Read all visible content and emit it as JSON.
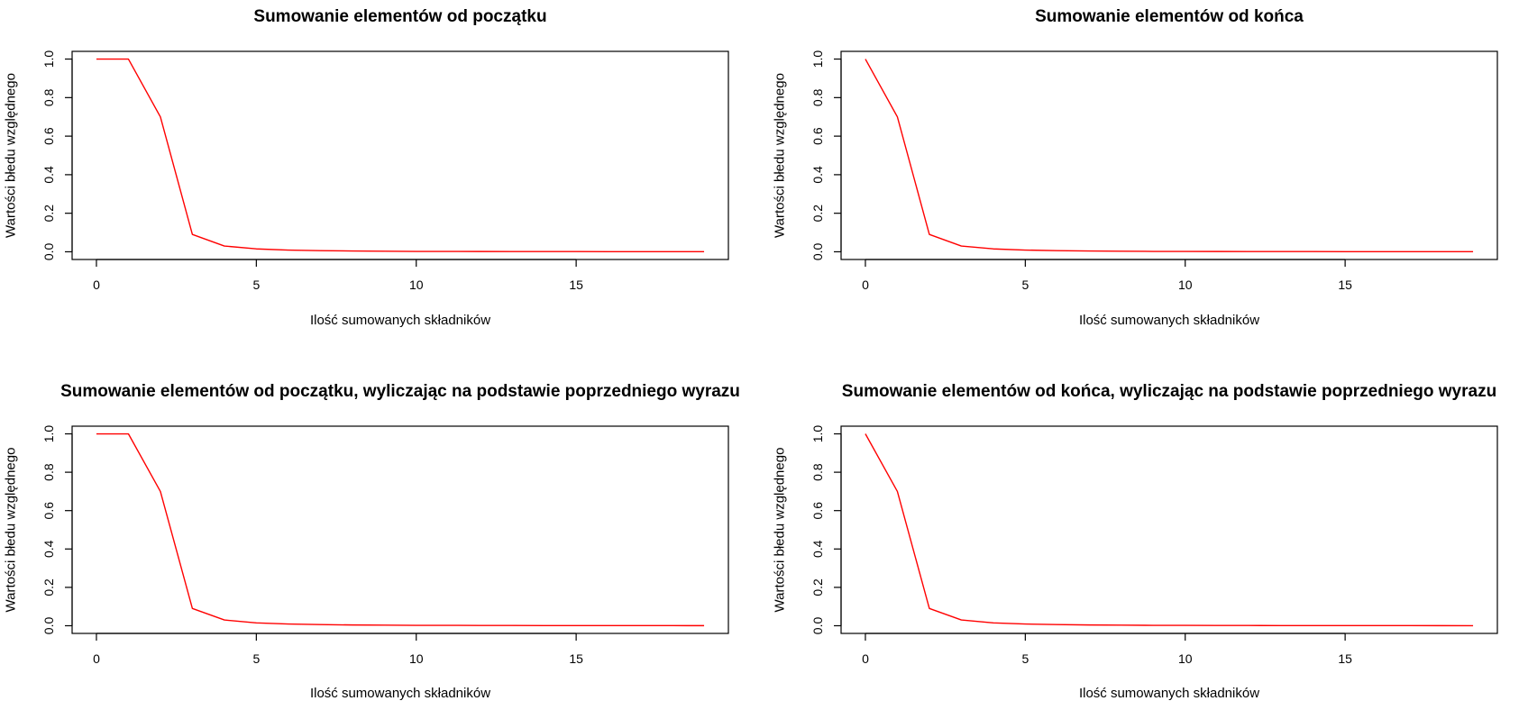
{
  "chart_data": [
    {
      "type": "line",
      "title": "Sumowanie elementów od początku",
      "xlabel": "Ilość sumowanych składników",
      "ylabel": "Wartości błedu względnego",
      "x": [
        0,
        1,
        2,
        3,
        4,
        5,
        6,
        7,
        8,
        9,
        10,
        11,
        12,
        13,
        14,
        15,
        16,
        17,
        18,
        19
      ],
      "series": [
        {
          "color": "#ff0000",
          "values": [
            1.0,
            1.0,
            0.7,
            0.09,
            0.03,
            0.015,
            0.009,
            0.006,
            0.004,
            0.003,
            0.002,
            0.002,
            0.0015,
            0.0012,
            0.001,
            0.001,
            0.0008,
            0.0007,
            0.0006,
            0.0005
          ]
        }
      ],
      "xlim": [
        -0.76,
        19.76
      ],
      "ylim": [
        -0.04,
        1.04
      ],
      "xticks": [
        0,
        5,
        10,
        15
      ],
      "yticks": [
        0.0,
        0.2,
        0.4,
        0.6,
        0.8,
        1.0
      ],
      "grid": false,
      "legend": "none"
    },
    {
      "type": "line",
      "title": "Sumowanie elementów od końca",
      "xlabel": "Ilość sumowanych składników",
      "ylabel": "Wartości błedu względnego",
      "x": [
        0,
        1,
        2,
        3,
        4,
        5,
        6,
        7,
        8,
        9,
        10,
        11,
        12,
        13,
        14,
        15,
        16,
        17,
        18,
        19
      ],
      "series": [
        {
          "color": "#ff0000",
          "values": [
            1.0,
            0.7,
            0.09,
            0.03,
            0.015,
            0.009,
            0.006,
            0.004,
            0.003,
            0.002,
            0.002,
            0.0015,
            0.0012,
            0.001,
            0.001,
            0.0008,
            0.0007,
            0.0006,
            0.0005,
            0.0004
          ]
        }
      ],
      "xlim": [
        -0.76,
        19.76
      ],
      "ylim": [
        -0.04,
        1.04
      ],
      "xticks": [
        0,
        5,
        10,
        15
      ],
      "yticks": [
        0.0,
        0.2,
        0.4,
        0.6,
        0.8,
        1.0
      ],
      "grid": false,
      "legend": "none"
    },
    {
      "type": "line",
      "title": "Sumowanie elementów od początku, wyliczając na podstawie poprzedniego wyrazu",
      "xlabel": "Ilość sumowanych składników",
      "ylabel": "Wartości błedu względnego",
      "x": [
        0,
        1,
        2,
        3,
        4,
        5,
        6,
        7,
        8,
        9,
        10,
        11,
        12,
        13,
        14,
        15,
        16,
        17,
        18,
        19
      ],
      "series": [
        {
          "color": "#ff0000",
          "values": [
            1.0,
            1.0,
            0.7,
            0.09,
            0.03,
            0.015,
            0.009,
            0.006,
            0.004,
            0.003,
            0.002,
            0.002,
            0.0015,
            0.0012,
            0.001,
            0.001,
            0.0008,
            0.0007,
            0.0006,
            0.0005
          ]
        }
      ],
      "xlim": [
        -0.76,
        19.76
      ],
      "ylim": [
        -0.04,
        1.04
      ],
      "xticks": [
        0,
        5,
        10,
        15
      ],
      "yticks": [
        0.0,
        0.2,
        0.4,
        0.6,
        0.8,
        1.0
      ],
      "grid": false,
      "legend": "none"
    },
    {
      "type": "line",
      "title": "Sumowanie elementów od końca, wyliczając na podstawie poprzedniego wyrazu",
      "xlabel": "Ilość sumowanych składników",
      "ylabel": "Wartości błedu względnego",
      "x": [
        0,
        1,
        2,
        3,
        4,
        5,
        6,
        7,
        8,
        9,
        10,
        11,
        12,
        13,
        14,
        15,
        16,
        17,
        18,
        19
      ],
      "series": [
        {
          "color": "#ff0000",
          "values": [
            1.0,
            0.7,
            0.09,
            0.03,
            0.015,
            0.009,
            0.006,
            0.004,
            0.003,
            0.002,
            0.002,
            0.0015,
            0.0012,
            0.001,
            0.001,
            0.0008,
            0.0007,
            0.0006,
            0.0005,
            0.0004
          ]
        }
      ],
      "xlim": [
        -0.76,
        19.76
      ],
      "ylim": [
        -0.04,
        1.04
      ],
      "xticks": [
        0,
        5,
        10,
        15
      ],
      "yticks": [
        0.0,
        0.2,
        0.4,
        0.6,
        0.8,
        1.0
      ],
      "grid": false,
      "legend": "none"
    }
  ]
}
